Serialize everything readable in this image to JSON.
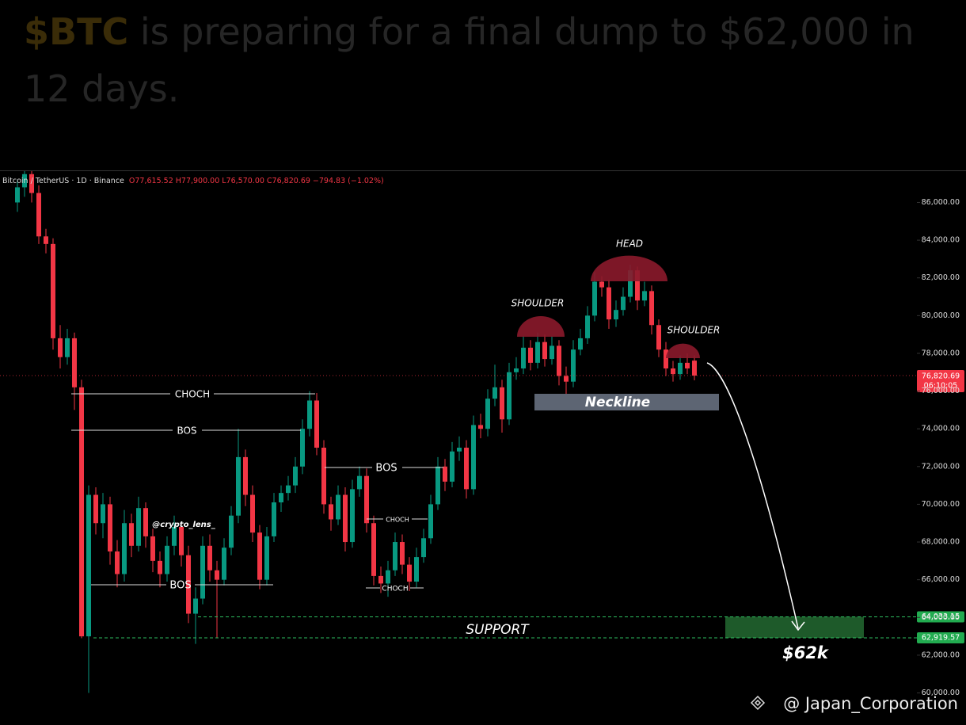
{
  "post": {
    "title_ticker": "$BTC",
    "title_text": "is preparing for a final dump to $62,000 in 12 days."
  },
  "watermark": "@ Japan_Corporation",
  "chart_data": {
    "type": "candlestick",
    "symbol": "Bitcoin / TetherUS · 1D · Binance",
    "ohlc_text": "O77,615.52 H77,900.00 L76,570.00 C76,820.69 −794.83 (−1.02%)",
    "up_color": "#089981",
    "down_color": "#f23645",
    "open": [
      86000,
      86800,
      87500,
      86500,
      84200,
      83800,
      78800,
      77800,
      78800,
      76200,
      63000,
      70500,
      69000,
      70000,
      67500,
      66300,
      69000,
      67800,
      69800,
      68300,
      67000,
      66300,
      67800,
      68800,
      67300,
      64200,
      65000,
      67800,
      66500,
      66000,
      67700,
      69400,
      72500,
      70500,
      68500,
      66000,
      68300,
      70100,
      70600,
      71000,
      72000,
      74000,
      75500,
      73000,
      70000,
      69200,
      70500,
      68000,
      70800,
      71500,
      69000,
      66200,
      65800,
      66500,
      68000,
      66800,
      65900,
      67200,
      68200,
      70000,
      72000,
      71200,
      72800,
      73000,
      70800,
      74200,
      74000,
      75600,
      76200,
      74500,
      77000,
      77200,
      78300,
      77500,
      78600,
      77700,
      78400,
      76800,
      76500,
      78200,
      78800,
      80000,
      81800,
      81500,
      79800,
      80300,
      81000,
      82400,
      80800,
      81300,
      79500,
      78200,
      77200,
      76900,
      77500,
      77615.52
    ],
    "high": [
      87200,
      88000,
      87800,
      86900,
      84600,
      84100,
      79500,
      79300,
      79100,
      76600,
      71000,
      70900,
      70600,
      70400,
      68100,
      69700,
      69500,
      70400,
      70100,
      68700,
      67500,
      68300,
      69400,
      69000,
      67800,
      65600,
      68300,
      68400,
      67000,
      68200,
      69900,
      74000,
      72900,
      71000,
      68900,
      68800,
      70600,
      71000,
      71500,
      72500,
      74500,
      76000,
      75900,
      73400,
      70400,
      71000,
      70900,
      71300,
      72000,
      71900,
      69400,
      66700,
      67000,
      68500,
      68400,
      67200,
      67700,
      68700,
      70500,
      72500,
      72400,
      73300,
      73600,
      73400,
      74700,
      74800,
      76100,
      77400,
      76600,
      77500,
      77800,
      78900,
      78700,
      79100,
      79000,
      78900,
      78700,
      77300,
      78700,
      79300,
      80500,
      82300,
      82100,
      81900,
      80800,
      81500,
      82700,
      82600,
      81800,
      81600,
      79800,
      78600,
      77600,
      77900,
      78000,
      77900
    ],
    "low": [
      85500,
      86300,
      86000,
      83800,
      83300,
      78200,
      77200,
      77400,
      75000,
      62900,
      60000,
      68400,
      68200,
      66800,
      65600,
      65900,
      67200,
      67500,
      67700,
      66400,
      65600,
      65900,
      67300,
      66700,
      63700,
      62600,
      64700,
      65900,
      62900,
      65700,
      67300,
      69000,
      69900,
      68000,
      65500,
      65700,
      68000,
      69600,
      70200,
      70600,
      71600,
      73600,
      72600,
      69500,
      68600,
      68900,
      67500,
      67700,
      70400,
      68500,
      65700,
      65300,
      65100,
      66200,
      66300,
      65400,
      65600,
      66900,
      67900,
      69700,
      70700,
      70900,
      72300,
      70300,
      70500,
      73500,
      73600,
      75200,
      73800,
      74200,
      76600,
      76900,
      77100,
      77200,
      77300,
      77400,
      76300,
      75300,
      76200,
      77900,
      78500,
      79700,
      81000,
      79300,
      79400,
      80000,
      80700,
      80300,
      80500,
      79000,
      77800,
      76800,
      76500,
      76600,
      76900,
      76570
    ],
    "close": [
      86800,
      87500,
      86500,
      84200,
      83800,
      78800,
      77800,
      78800,
      76200,
      63000,
      70500,
      69000,
      70000,
      67500,
      66300,
      69000,
      67800,
      69800,
      68300,
      67000,
      66300,
      67800,
      68800,
      67300,
      64200,
      65000,
      67800,
      66500,
      66000,
      67700,
      69400,
      72500,
      70500,
      68500,
      66000,
      68300,
      70100,
      70600,
      71000,
      72000,
      74000,
      75500,
      73000,
      70000,
      69200,
      70500,
      68000,
      70800,
      71500,
      69000,
      66200,
      65800,
      66500,
      68000,
      66800,
      65900,
      67200,
      68200,
      70000,
      72000,
      71200,
      72800,
      73000,
      70800,
      74200,
      74000,
      75600,
      76200,
      74500,
      77000,
      77200,
      78300,
      77500,
      78600,
      77700,
      78400,
      76800,
      76500,
      78200,
      78800,
      80000,
      81800,
      81500,
      79800,
      80300,
      81000,
      82400,
      80800,
      81300,
      79500,
      78200,
      77200,
      76900,
      77500,
      77200,
      76820.69
    ],
    "ylim": [
      58300,
      87700
    ],
    "yticks": [
      {
        "value": 60000,
        "label": "60,000.00"
      },
      {
        "value": 62000,
        "label": "62,000.00"
      },
      {
        "value": 64000,
        "label": "64,000.00"
      },
      {
        "value": 66000,
        "label": "66,000.00"
      },
      {
        "value": 68000,
        "label": "68,000.00"
      },
      {
        "value": 70000,
        "label": "70,000.00"
      },
      {
        "value": 72000,
        "label": "72,000.00"
      },
      {
        "value": 74000,
        "label": "74,000.00"
      },
      {
        "value": 76000,
        "label": "76,000.00"
      },
      {
        "value": 78000,
        "label": "78,000.00"
      },
      {
        "value": 80000,
        "label": "80,000.00"
      },
      {
        "value": 82000,
        "label": "82,000.00"
      },
      {
        "value": 84000,
        "label": "84,000.00"
      },
      {
        "value": 86000,
        "label": "86,000.00"
      }
    ],
    "price_tag": {
      "value": 76820.69,
      "label": "76,820.69",
      "timer": "06:10:05"
    },
    "support_levels": [
      {
        "value": 64033.15,
        "label": "64,033.15"
      },
      {
        "value": 62919.57,
        "label": "62,919.57"
      }
    ],
    "annotations": {
      "choch_1": "CHOCH",
      "bos_1": "BOS",
      "bos_2": "BOS",
      "choch_2": "CHOCH",
      "choch_3": "CHOCH",
      "bos_3": "BOS",
      "author": "@crypto_lens_",
      "left_shoulder": "SHOULDER",
      "head": "HEAD",
      "right_shoulder": "SHOULDER",
      "neckline": "Neckline",
      "support": "SUPPORT",
      "target": "$62k"
    }
  }
}
